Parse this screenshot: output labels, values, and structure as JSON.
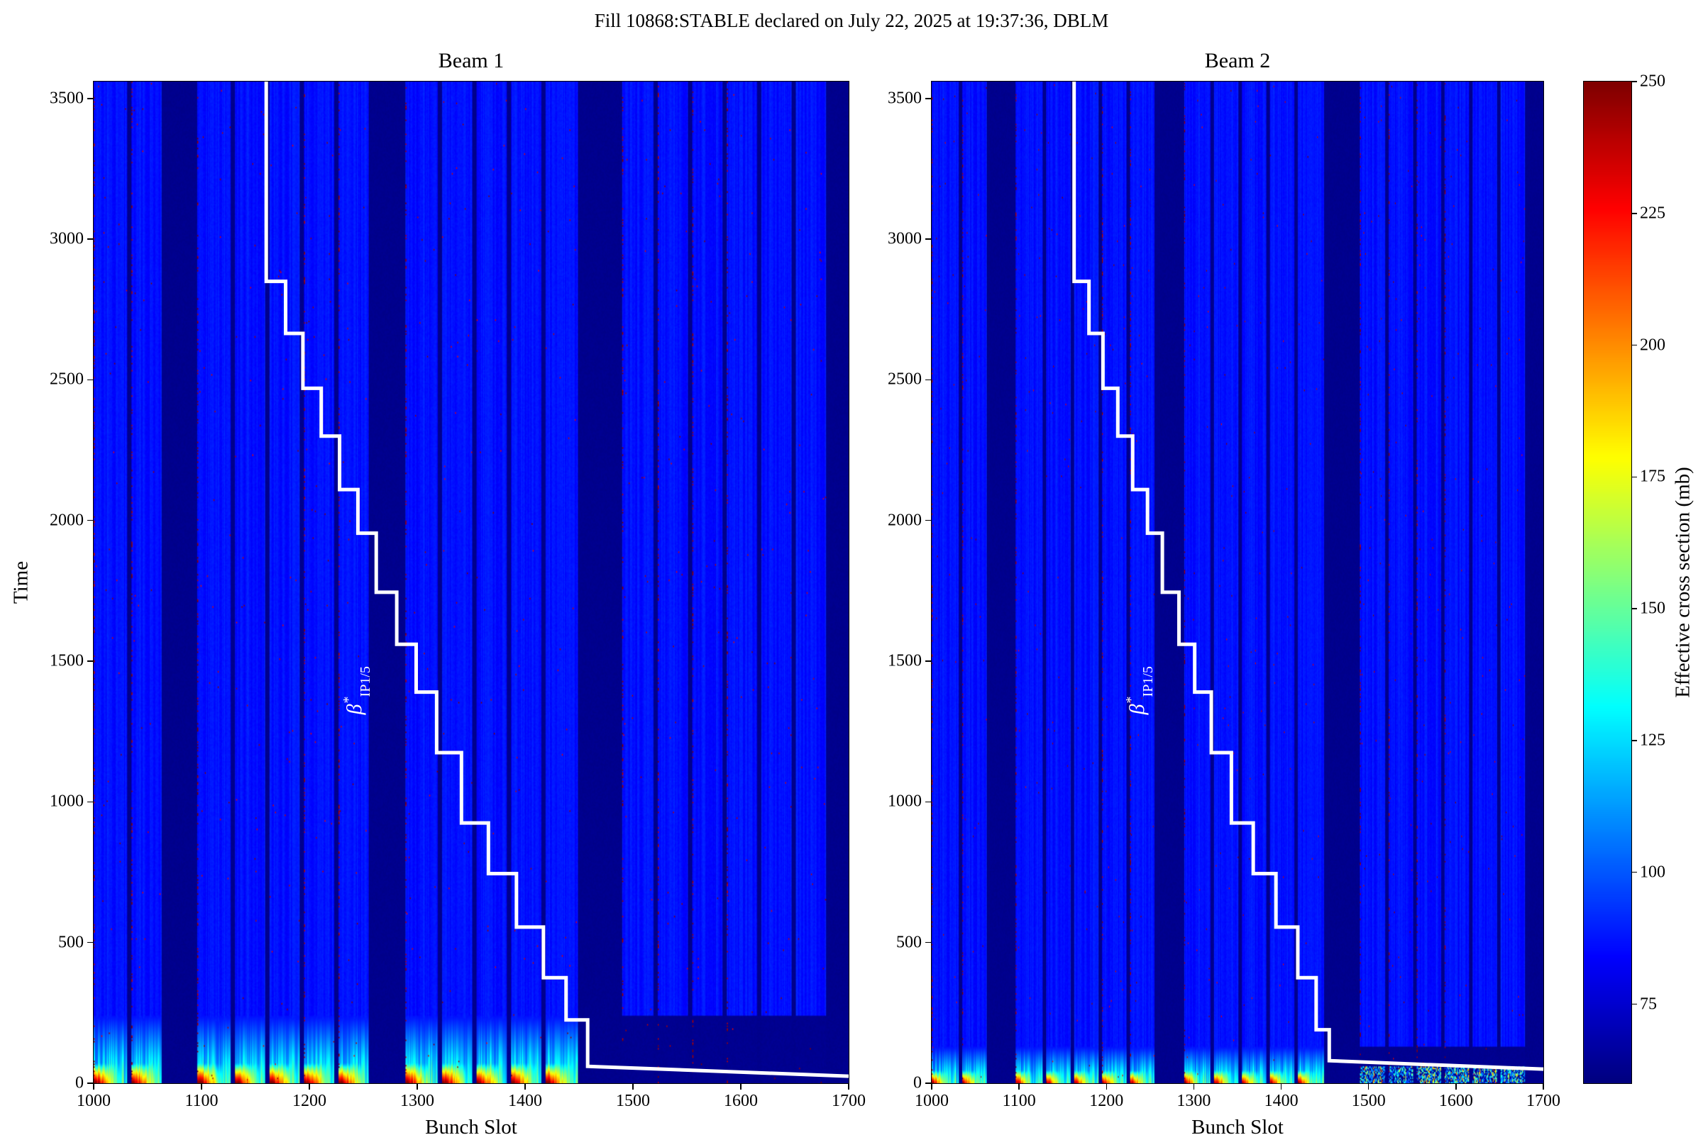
{
  "title": "Fill 10868:STABLE declared on July 22, 2025 at 19:37:36, DBLM",
  "chart_data": {
    "type": "heatmap",
    "colormap": "jet",
    "panels": [
      {
        "title": "Beam 1",
        "xlabel": "Bunch Slot",
        "ylabel": "Time",
        "xlim": [
          1000,
          1700
        ],
        "ylim": [
          0,
          3560
        ],
        "x_ticks": [
          1000,
          1100,
          1200,
          1300,
          1400,
          1500,
          1600,
          1700
        ],
        "y_ticks": [
          0,
          500,
          1000,
          1500,
          2000,
          2500,
          3000,
          3500
        ],
        "beta_star_label": {
          "symbol": "β",
          "sup": "*",
          "sub": "IP1/5",
          "slot": 1248,
          "time": 1310
        },
        "beta_star_steps": [
          [
            1160,
            3560
          ],
          [
            1160,
            2850
          ],
          [
            1178,
            2850
          ],
          [
            1178,
            2665
          ],
          [
            1194,
            2665
          ],
          [
            1194,
            2470
          ],
          [
            1211,
            2470
          ],
          [
            1211,
            2300
          ],
          [
            1228,
            2300
          ],
          [
            1228,
            2110
          ],
          [
            1245,
            2110
          ],
          [
            1245,
            1955
          ],
          [
            1262,
            1955
          ],
          [
            1262,
            1745
          ],
          [
            1281,
            1745
          ],
          [
            1281,
            1560
          ],
          [
            1299,
            1560
          ],
          [
            1299,
            1390
          ],
          [
            1318,
            1390
          ],
          [
            1318,
            1175
          ],
          [
            1341,
            1175
          ],
          [
            1341,
            925
          ],
          [
            1366,
            925
          ],
          [
            1366,
            745
          ],
          [
            1392,
            745
          ],
          [
            1392,
            555
          ],
          [
            1417,
            555
          ],
          [
            1417,
            375
          ],
          [
            1438,
            375
          ],
          [
            1438,
            225
          ],
          [
            1458,
            225
          ],
          [
            1458,
            60
          ],
          [
            1700,
            25
          ]
        ],
        "profile": {
          "base_value_mb": 86,
          "gap_value_mb": 62,
          "band_height": 240,
          "hot_height": 70,
          "hot_peak": 255,
          "hot_falloff": 6,
          "dark_right_of": 1460,
          "bottom_right_hotspots": false
        }
      },
      {
        "title": "Beam 2",
        "xlabel": "Bunch Slot",
        "ylabel": "",
        "xlim": [
          1000,
          1700
        ],
        "ylim": [
          0,
          3560
        ],
        "x_ticks": [
          1000,
          1100,
          1200,
          1300,
          1400,
          1500,
          1600,
          1700
        ],
        "y_ticks": [
          0,
          500,
          1000,
          1500,
          2000,
          2500,
          3000,
          3500
        ],
        "beta_star_label": {
          "symbol": "β",
          "sup": "*",
          "sub": "IP1/5",
          "slot": 1243,
          "time": 1310
        },
        "beta_star_steps": [
          [
            1163,
            3560
          ],
          [
            1163,
            2850
          ],
          [
            1180,
            2850
          ],
          [
            1180,
            2665
          ],
          [
            1196,
            2665
          ],
          [
            1196,
            2470
          ],
          [
            1213,
            2470
          ],
          [
            1213,
            2300
          ],
          [
            1230,
            2300
          ],
          [
            1230,
            2110
          ],
          [
            1247,
            2110
          ],
          [
            1247,
            1955
          ],
          [
            1264,
            1955
          ],
          [
            1264,
            1745
          ],
          [
            1283,
            1745
          ],
          [
            1283,
            1560
          ],
          [
            1301,
            1560
          ],
          [
            1301,
            1390
          ],
          [
            1320,
            1390
          ],
          [
            1320,
            1175
          ],
          [
            1343,
            1175
          ],
          [
            1343,
            925
          ],
          [
            1368,
            925
          ],
          [
            1368,
            745
          ],
          [
            1394,
            745
          ],
          [
            1394,
            555
          ],
          [
            1419,
            555
          ],
          [
            1419,
            375
          ],
          [
            1440,
            375
          ],
          [
            1440,
            190
          ],
          [
            1455,
            190
          ],
          [
            1455,
            80
          ],
          [
            1700,
            50
          ]
        ],
        "profile": {
          "base_value_mb": 86,
          "gap_value_mb": 62,
          "band_height": 130,
          "hot_height": 45,
          "hot_peak": 240,
          "hot_falloff": 7,
          "dark_right_of": 1450,
          "bottom_right_hotspots": true
        }
      }
    ],
    "colorbar": {
      "label": "Effective cross section (mb)",
      "ticks": [
        75,
        100,
        125,
        150,
        175,
        200,
        225,
        250
      ],
      "vmin": 60,
      "vmax": 250
    },
    "trains": [
      [
        1000,
        1030
      ],
      [
        1035,
        1062
      ],
      [
        1096,
        1126
      ],
      [
        1131,
        1158
      ],
      [
        1163,
        1190
      ],
      [
        1195,
        1222
      ],
      [
        1227,
        1254
      ],
      [
        1289,
        1318
      ],
      [
        1323,
        1350
      ],
      [
        1355,
        1382
      ],
      [
        1387,
        1414
      ],
      [
        1419,
        1448
      ],
      [
        1490,
        1518
      ],
      [
        1523,
        1550
      ],
      [
        1555,
        1582
      ],
      [
        1587,
        1614
      ],
      [
        1619,
        1646
      ],
      [
        1651,
        1678
      ]
    ]
  }
}
